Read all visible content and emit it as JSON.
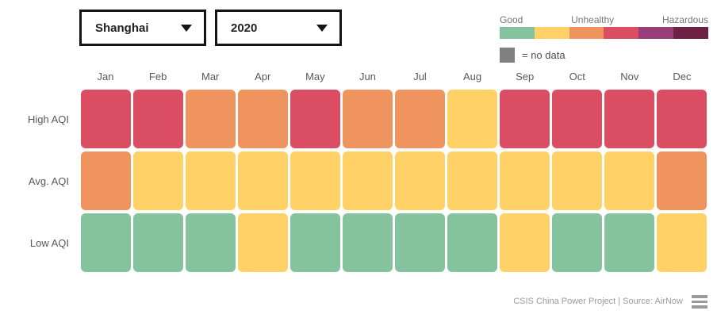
{
  "header": {
    "city_dropdown": {
      "value": "Shanghai"
    },
    "year_dropdown": {
      "value": "2020"
    }
  },
  "legend": {
    "labels": [
      "Good",
      "Unhealthy",
      "Hazardous"
    ],
    "colors": [
      "#85C29E",
      "#FFD166",
      "#F0945F",
      "#DB4D63",
      "#993E7B",
      "#6E2144"
    ],
    "no_data": {
      "color": "#808080",
      "label": "= no data"
    }
  },
  "chart_data": {
    "type": "heatmap",
    "title": "",
    "categories": [
      "Jan",
      "Feb",
      "Mar",
      "Apr",
      "May",
      "Jun",
      "Jul",
      "Aug",
      "Sep",
      "Oct",
      "Nov",
      "Dec"
    ],
    "rows": [
      {
        "name": "High AQI",
        "values": [
          "unhealthy",
          "unhealthy",
          "unhealthy_sensitive",
          "unhealthy_sensitive",
          "unhealthy",
          "unhealthy_sensitive",
          "unhealthy_sensitive",
          "moderate",
          "unhealthy",
          "unhealthy",
          "unhealthy",
          "unhealthy"
        ]
      },
      {
        "name": "Avg. AQI",
        "values": [
          "unhealthy_sensitive",
          "moderate",
          "moderate",
          "moderate",
          "moderate",
          "moderate",
          "moderate",
          "moderate",
          "moderate",
          "moderate",
          "moderate",
          "unhealthy_sensitive"
        ]
      },
      {
        "name": "Low AQI",
        "values": [
          "good",
          "good",
          "good",
          "moderate",
          "good",
          "good",
          "good",
          "good",
          "moderate",
          "good",
          "good",
          "moderate"
        ]
      }
    ],
    "palette": {
      "good": "#85C29E",
      "moderate": "#FFD166",
      "unhealthy_sensitive": "#F0945F",
      "unhealthy": "#DB4D63",
      "very_unhealthy": "#993E7B",
      "hazardous": "#6E2144",
      "no_data": "#808080"
    },
    "legend_position": "top-right",
    "grid": false
  },
  "footer": {
    "credit": "CSIS China Power Project | Source: AirNow"
  }
}
